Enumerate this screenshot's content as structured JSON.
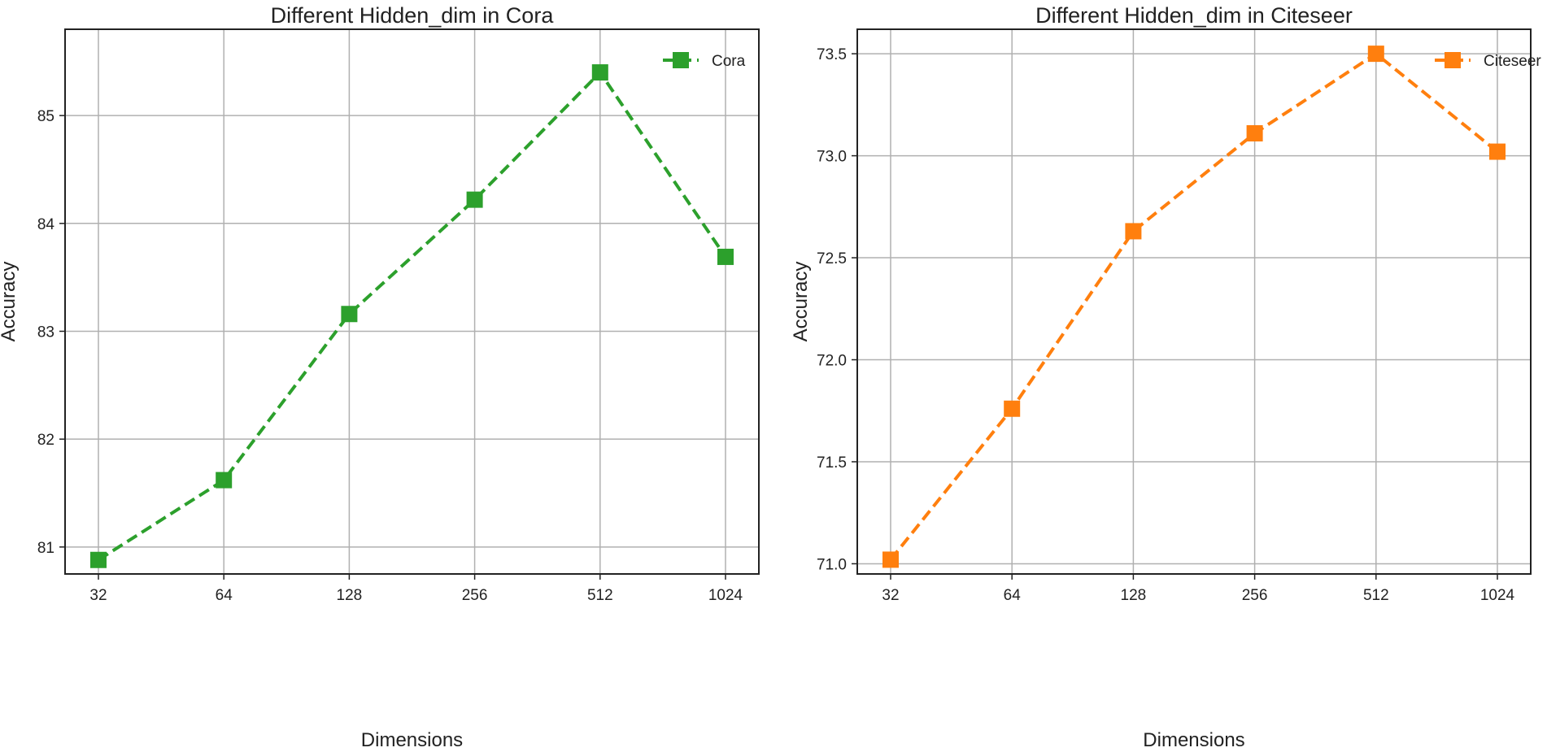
{
  "chart_data": [
    {
      "type": "line",
      "title": "Different Hidden_dim in Cora",
      "xlabel": "Dimensions",
      "ylabel": "Accuracy",
      "categories": [
        "32",
        "64",
        "128",
        "256",
        "512",
        "1024"
      ],
      "ylim": [
        80.75,
        85.8
      ],
      "yticks": [
        81,
        82,
        83,
        84,
        85
      ],
      "grid": true,
      "legend_position": "top-right",
      "series": [
        {
          "name": "Cora",
          "color": "#2ca02c",
          "line_style": "dashed",
          "marker": "square",
          "values": [
            80.88,
            81.62,
            83.16,
            84.22,
            85.4,
            83.69
          ]
        }
      ]
    },
    {
      "type": "line",
      "title": "Different Hidden_dim in Citeseer",
      "xlabel": "Dimensions",
      "ylabel": "Accuracy",
      "categories": [
        "32",
        "64",
        "128",
        "256",
        "512",
        "1024"
      ],
      "ylim": [
        70.95,
        73.62
      ],
      "yticks": [
        "71.0",
        "71.5",
        "72.0",
        "72.5",
        "73.0",
        "73.5"
      ],
      "grid": true,
      "legend_position": "top-right",
      "series": [
        {
          "name": "Citeseer",
          "color": "#ff7f0e",
          "line_style": "dashed",
          "marker": "square",
          "values": [
            71.02,
            71.76,
            72.63,
            73.11,
            73.5,
            73.02
          ]
        }
      ]
    }
  ]
}
